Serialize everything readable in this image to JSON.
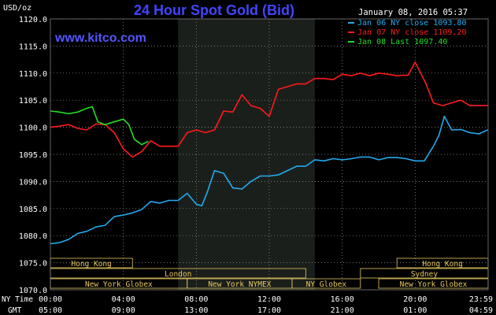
{
  "header": {
    "title": "24 Hour Spot Gold (Bid)",
    "unit": "USD/oz",
    "timestamp": "January 08, 2016 05:37",
    "website": "www.kitco.com"
  },
  "colors": {
    "background": "#000000",
    "plot_bg": "#000000",
    "highlight_band": "#1b1f1b",
    "grid": "#9a9a9a",
    "axis_text": "#ffffff",
    "title": "#4444ff",
    "website": "#5555ff",
    "session_border": "#e8c860",
    "jan06": "#22aaee",
    "jan07": "#ff1a1a",
    "jan08": "#22dd22"
  },
  "axis_labels": {
    "ny_time": "NY Time",
    "gmt": "GMT"
  },
  "sessions": [
    {
      "row": 0,
      "start": 0.0,
      "end": 4.5,
      "label": "Hong Kong"
    },
    {
      "row": 1,
      "start": 0.0,
      "end": 14.0,
      "label": "London"
    },
    {
      "row": 2,
      "start": 0.0,
      "end": 7.5,
      "label": "New York Globex"
    },
    {
      "row": 2,
      "start": 7.5,
      "end": 13.25,
      "label": "New York NYMEX"
    },
    {
      "row": 2,
      "start": 13.25,
      "end": 17.0,
      "label": "NY Globex"
    },
    {
      "row": 1,
      "start": 17.0,
      "end": 24.0,
      "label": "Sydney"
    },
    {
      "row": 0,
      "start": 19.0,
      "end": 24.0,
      "label": "Hong Kong"
    },
    {
      "row": 2,
      "start": 18.0,
      "end": 24.0,
      "label": "New York Globex"
    }
  ],
  "chart_data": {
    "type": "line",
    "title": "24 Hour Spot Gold (Bid)",
    "ylabel": "USD/oz",
    "ylim": [
      1070,
      1120
    ],
    "yticks": [
      "1120.0",
      "1115.0",
      "1110.0",
      "1105.0",
      "1100.0",
      "1095.0",
      "1090.0",
      "1085.0",
      "1080.0",
      "1075.0",
      "1070.0"
    ],
    "xlim": [
      0,
      24
    ],
    "x_tick_positions": [
      0,
      4,
      8,
      12,
      16,
      20,
      24
    ],
    "xticks_ny": [
      "00:00",
      "04:00",
      "08:00",
      "12:00",
      "16:00",
      "20:00",
      "23:59"
    ],
    "xticks_gmt": [
      "05:00",
      "09:00",
      "13:00",
      "17:00",
      "21:00",
      "01:00",
      "04:59"
    ],
    "nymex_band": [
      7.0,
      14.5
    ],
    "grid": true,
    "legend_position": "top-right",
    "series": [
      {
        "name": "Jan 06 NY close 1093.80",
        "color": "#22aaee",
        "x": [
          0,
          0.5,
          1.0,
          1.5,
          2.0,
          2.5,
          3.0,
          3.5,
          4.0,
          4.5,
          5.0,
          5.5,
          6.0,
          6.5,
          7.0,
          7.5,
          8.0,
          8.3,
          8.6,
          9.0,
          9.5,
          10.0,
          10.5,
          11.0,
          11.5,
          12.0,
          12.5,
          13.0,
          13.5,
          14.0,
          14.5,
          15.0,
          15.5,
          16.0,
          16.5,
          17.0,
          17.5,
          18.0,
          18.5,
          19.0,
          19.5,
          20.0,
          20.5,
          21.0,
          21.3,
          21.6,
          22.0,
          22.5,
          23.0,
          23.5,
          23.98
        ],
        "y": [
          1078.5,
          1078.7,
          1079.3,
          1080.4,
          1080.8,
          1081.6,
          1081.9,
          1083.5,
          1083.8,
          1084.2,
          1084.8,
          1086.3,
          1086.0,
          1086.5,
          1086.5,
          1087.8,
          1085.8,
          1085.5,
          1088.0,
          1092.0,
          1091.5,
          1088.8,
          1088.6,
          1090.0,
          1091.0,
          1091.0,
          1091.2,
          1092.0,
          1092.8,
          1092.8,
          1094.0,
          1093.8,
          1094.2,
          1094.0,
          1094.2,
          1094.5,
          1094.5,
          1094.0,
          1094.4,
          1094.4,
          1094.2,
          1093.8,
          1093.8,
          1096.5,
          1098.5,
          1102.0,
          1099.5,
          1099.6,
          1099.0,
          1098.8,
          1099.5
        ]
      },
      {
        "name": "Jan 07 NY close 1109.20",
        "color": "#ff1a1a",
        "x": [
          0,
          0.5,
          1.0,
          1.5,
          2.0,
          2.5,
          3.0,
          3.5,
          4.0,
          4.5,
          5.0,
          5.5,
          6.0,
          6.5,
          7.0,
          7.5,
          8.0,
          8.5,
          9.0,
          9.5,
          10.0,
          10.5,
          11.0,
          11.5,
          12.0,
          12.5,
          13.0,
          13.5,
          14.0,
          14.5,
          15.0,
          15.5,
          16.0,
          16.5,
          17.0,
          17.5,
          18.0,
          18.5,
          19.0,
          19.3,
          19.6,
          20.0,
          20.3,
          20.6,
          21.0,
          21.5,
          22.0,
          22.5,
          23.0,
          23.5,
          23.98
        ],
        "y": [
          1100.0,
          1100.2,
          1100.5,
          1099.8,
          1099.5,
          1100.6,
          1100.5,
          1099.0,
          1096.0,
          1094.5,
          1095.5,
          1097.5,
          1096.5,
          1096.5,
          1096.5,
          1099.0,
          1099.5,
          1099.0,
          1099.5,
          1103.0,
          1102.8,
          1106.0,
          1104.0,
          1103.5,
          1102.0,
          1107.0,
          1107.5,
          1108.0,
          1108.0,
          1109.0,
          1109.0,
          1108.8,
          1109.8,
          1109.5,
          1110.0,
          1109.5,
          1110.0,
          1109.8,
          1109.5,
          1109.6,
          1109.6,
          1112.0,
          1110.0,
          1108.0,
          1104.5,
          1104.0,
          1104.5,
          1105.0,
          1104.0,
          1104.0,
          1104.0
        ]
      },
      {
        "name": "Jan 08 Last 1097.40",
        "color": "#22dd22",
        "x": [
          0,
          0.5,
          1.0,
          1.5,
          2.0,
          2.3,
          2.6,
          3.0,
          3.5,
          4.0,
          4.3,
          4.6,
          5.0,
          5.37
        ],
        "y": [
          1103.0,
          1102.8,
          1102.5,
          1102.8,
          1103.5,
          1103.8,
          1101.0,
          1100.5,
          1101.0,
          1101.5,
          1100.5,
          1097.8,
          1096.8,
          1097.4
        ]
      }
    ]
  }
}
